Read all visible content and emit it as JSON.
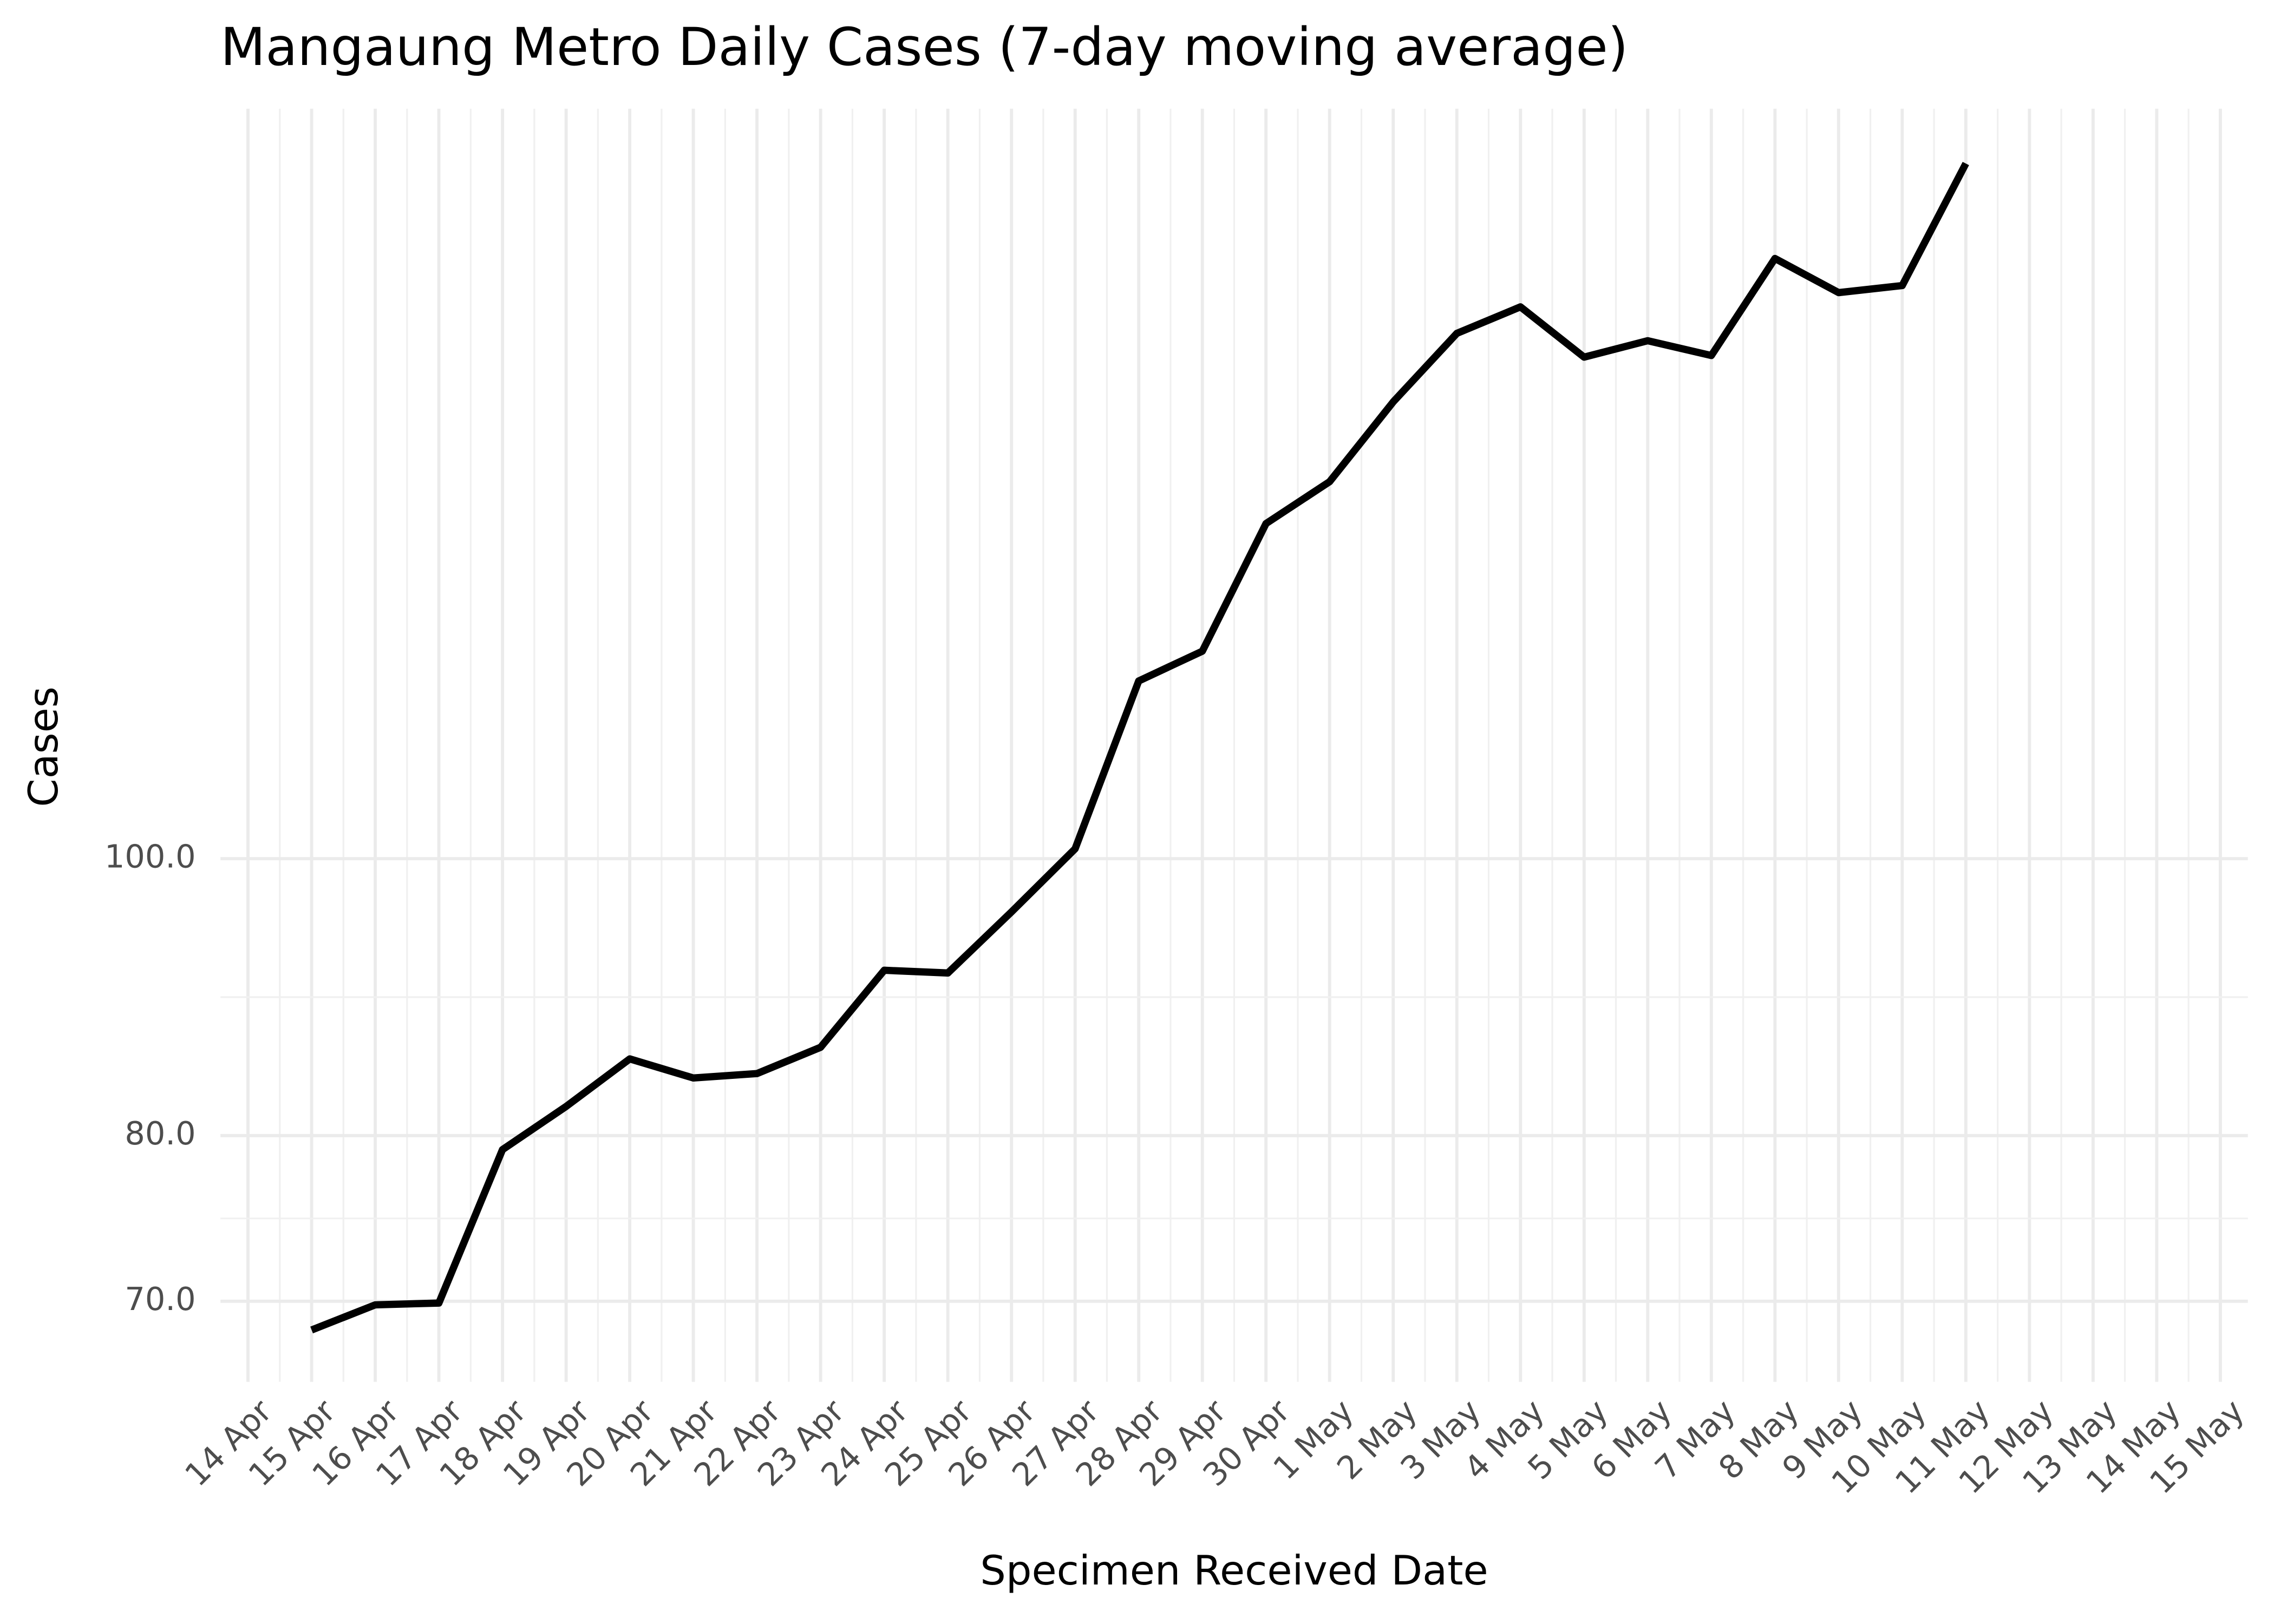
{
  "chart_data": {
    "type": "line",
    "title": "Mangaung Metro Daily Cases (7-day moving average)",
    "x_label": "Specimen Received Date",
    "y_label": "Cases",
    "xticks": [
      "14 Apr",
      "15 Apr",
      "16 Apr",
      "17 Apr",
      "18 Apr",
      "19 Apr",
      "20 Apr",
      "21 Apr",
      "22 Apr",
      "23 Apr",
      "24 Apr",
      "25 Apr",
      "26 Apr",
      "27 Apr",
      "28 Apr",
      "29 Apr",
      "30 Apr",
      "1 May",
      "2 May",
      "3 May",
      "4 May",
      "5 May",
      "6 May",
      "7 May",
      "8 May",
      "9 May",
      "10 May",
      "11 May",
      "12 May",
      "13 May",
      "14 May",
      "15 May"
    ],
    "x": [
      "15 Apr",
      "16 Apr",
      "17 Apr",
      "18 Apr",
      "19 Apr",
      "20 Apr",
      "21 Apr",
      "22 Apr",
      "23 Apr",
      "24 Apr",
      "25 Apr",
      "26 Apr",
      "27 Apr",
      "28 Apr",
      "29 Apr",
      "30 Apr",
      "1 May",
      "2 May",
      "3 May",
      "4 May",
      "5 May",
      "6 May",
      "7 May",
      "8 May",
      "9 May",
      "10 May",
      "11 May"
    ],
    "series": [
      {
        "name": "Cases",
        "color": "#000000",
        "values": [
          68.4,
          69.8,
          69.9,
          79.1,
          81.9,
          85.1,
          83.8,
          84.1,
          85.9,
          91.4,
          91.2,
          95.8,
          100.8,
          115.4,
          118.2,
          131.0,
          135.5,
          144.5,
          152.7,
          156.0,
          149.8,
          151.8,
          150.0,
          162.2,
          157.8,
          158.7,
          175.1
        ]
      }
    ],
    "ylim": [
      65.6,
      183
    ],
    "yticks": [
      {
        "value": 70,
        "label": "70.0"
      },
      {
        "value": 80,
        "label": "80.0"
      },
      {
        "value": 100,
        "label": "100.0"
      }
    ],
    "log_y": true,
    "grid": true
  }
}
